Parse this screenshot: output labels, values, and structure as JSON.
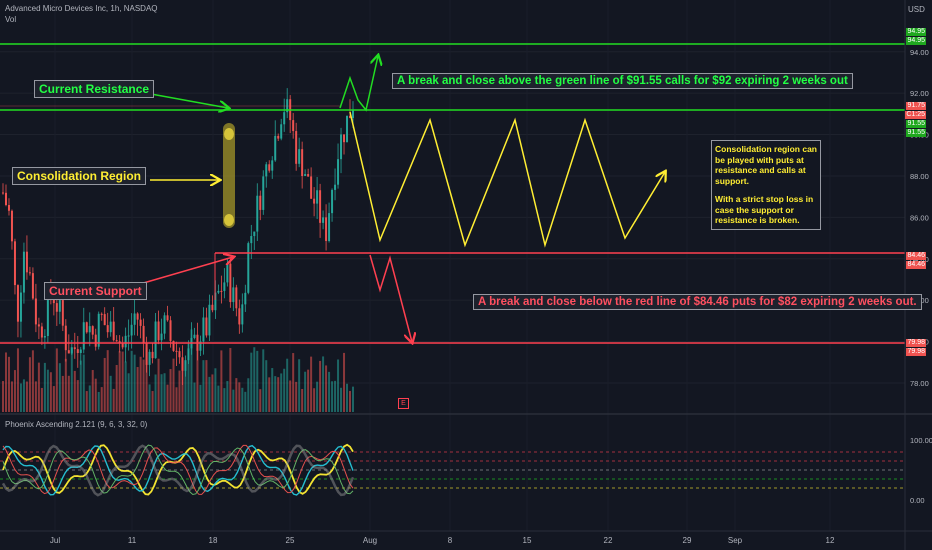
{
  "header": {
    "symbol_line": "Advanced Micro Devices Inc, 1h, NASDAQ",
    "vol_label": "Vol",
    "currency": "USD",
    "indicator_label": "Phoenix Ascending 2.121 (9, 6, 3, 32, 0)"
  },
  "annotations": {
    "current_resistance": "Current Resistance",
    "consolidation_region": "Consolidation Region",
    "current_support": "Current Support",
    "break_above": "A break and close above the green line of $91.55 calls for $92 expiring 2 weeks out",
    "break_below": "A break and close below the red line of $84.46 puts for $82 expiring 2 weeks out.",
    "note_1": "Consolidation region can be played with puts at resistance and calls at support.",
    "note_2": "With a strict stop loss in case the support or resistance is broken.",
    "event_marker": "E"
  },
  "price_tags": {
    "green_top": "94.95",
    "green_top_2": "94.95",
    "current": "91.75",
    "countdown": "C1:25",
    "green_mid": "91.55",
    "green_mid_2": "91.55",
    "red_mid": "84.46",
    "red_mid_2": "84.46",
    "red_low": "79.98",
    "red_low_2": "79.98"
  },
  "colors": {
    "background": "#131722",
    "green_line": "#22dd22",
    "red_line": "#ff4050",
    "yellow": "#ffee33",
    "candle_up": "#26a69a",
    "candle_down": "#ef5350"
  },
  "chart_data": {
    "type": "candlestick",
    "title": "Advanced Micro Devices Inc, 1h, NASDAQ",
    "ylabel": "USD",
    "ylim": [
      76.5,
      96.5
    ],
    "y_ticks": [
      "94.00",
      "92.00",
      "90.00",
      "88.00",
      "86.00",
      "84.00",
      "82.00",
      "80.00",
      "78.00"
    ],
    "x_ticks": [
      "Jul",
      "11",
      "18",
      "25",
      "Aug",
      "8",
      "15",
      "22",
      "29",
      "Sep",
      "12"
    ],
    "levels": [
      {
        "name": "resistance-top",
        "value": 94.95,
        "color": "green"
      },
      {
        "name": "resistance",
        "value": 91.55,
        "color": "green"
      },
      {
        "name": "support",
        "value": 84.46,
        "color": "red"
      },
      {
        "name": "support-low",
        "value": 79.98,
        "color": "red"
      }
    ],
    "price_path": [
      [
        0,
        87.2
      ],
      [
        1,
        86.0
      ],
      [
        2,
        81.0
      ],
      [
        3,
        84.5
      ],
      [
        4,
        83.0
      ],
      [
        5,
        80.5
      ],
      [
        6,
        81.0
      ],
      [
        7,
        82.5
      ],
      [
        8,
        81.5
      ],
      [
        9,
        80.0
      ],
      [
        10,
        79.5
      ],
      [
        11,
        80.3
      ],
      [
        12,
        81.0
      ],
      [
        13,
        80.2
      ],
      [
        14,
        81.2
      ],
      [
        15,
        80.5
      ],
      [
        16,
        80.8
      ],
      [
        17,
        79.6
      ],
      [
        18,
        80.4
      ],
      [
        19,
        81.5
      ],
      [
        20,
        80.0
      ],
      [
        21,
        79.2
      ],
      [
        22,
        80.5
      ],
      [
        23,
        80.8
      ],
      [
        24,
        80.0
      ],
      [
        25,
        79.5
      ],
      [
        26,
        79.0
      ],
      [
        27,
        79.6
      ],
      [
        28,
        80.3
      ],
      [
        29,
        80.6
      ],
      [
        30,
        81.5
      ],
      [
        31,
        82.5
      ],
      [
        32,
        83.2
      ],
      [
        33,
        82.0
      ],
      [
        34,
        81.0
      ],
      [
        35,
        84.5
      ],
      [
        36,
        86.0
      ],
      [
        37,
        87.5
      ],
      [
        38,
        89.0
      ],
      [
        39,
        90.0
      ],
      [
        40,
        91.5
      ],
      [
        41,
        90.8
      ],
      [
        42,
        89.0
      ],
      [
        43,
        88.5
      ],
      [
        44,
        87.0
      ],
      [
        45,
        86.5
      ],
      [
        46,
        85.0
      ],
      [
        47,
        87.5
      ],
      [
        48,
        89.5
      ],
      [
        49,
        90.5
      ],
      [
        50,
        91.6
      ]
    ],
    "indicator": {
      "name": "Phoenix Ascending 2.121 (9, 6, 3, 32, 0)",
      "ylim": [
        0,
        100
      ],
      "y_ticks": [
        "100.00",
        "0.00"
      ]
    }
  }
}
